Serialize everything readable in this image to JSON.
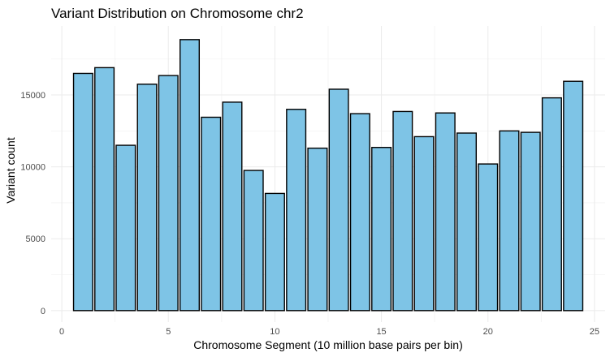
{
  "chart_data": {
    "type": "bar",
    "title": "Variant Distribution on Chromosome chr2",
    "xlabel": "Chromosome Segment (10 million base pairs per bin)",
    "ylabel": "Variant count",
    "x": [
      1,
      2,
      3,
      4,
      5,
      6,
      7,
      8,
      9,
      10,
      11,
      12,
      13,
      14,
      15,
      16,
      17,
      18,
      19,
      20,
      21,
      22,
      23,
      24
    ],
    "values": [
      16500,
      16900,
      11500,
      15750,
      16350,
      18850,
      13450,
      14500,
      9750,
      8150,
      14000,
      11300,
      15400,
      13700,
      11350,
      13850,
      12100,
      13750,
      12350,
      10200,
      12500,
      12400,
      14800,
      15950
    ],
    "xlim": [
      -0.5,
      25.5
    ],
    "ylim": [
      -800,
      19800
    ],
    "xticks": [
      0,
      5,
      10,
      15,
      20,
      25
    ],
    "yticks": [
      0,
      5000,
      10000,
      15000
    ],
    "bar_fill": "#7EC4E6",
    "bar_outline": "#000000",
    "grid": true,
    "legend": "none"
  }
}
